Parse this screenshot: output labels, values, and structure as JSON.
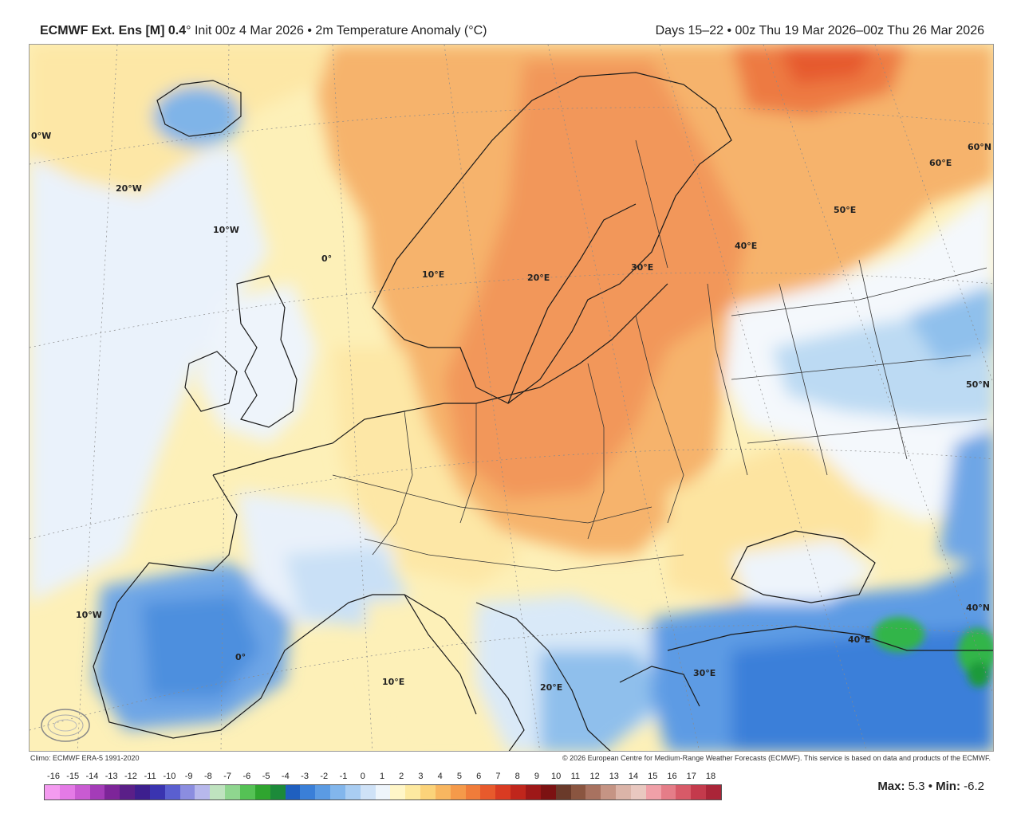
{
  "header": {
    "model": "ECMWF Ext. Ens [M] 0.4",
    "init": "° Init 00z 4 Mar 2026 • 2m Temperature Anomaly (°C)",
    "period": "Days 15–22 • 00z Thu 19 Mar 2026–00z Thu 26 Mar 2026"
  },
  "map_labels": [
    {
      "key": "lon0w_top",
      "text": "0°W"
    },
    {
      "key": "lon20w",
      "text": "20°W"
    },
    {
      "key": "lon10w_n",
      "text": "10°W"
    },
    {
      "key": "lon0",
      "text": "0°"
    },
    {
      "key": "lon10e_n",
      "text": "10°E"
    },
    {
      "key": "lon20e_n",
      "text": "20°E"
    },
    {
      "key": "lon30e_n",
      "text": "30°E"
    },
    {
      "key": "lon40e_n",
      "text": "40°E"
    },
    {
      "key": "lon50e",
      "text": "50°E"
    },
    {
      "key": "lon60e",
      "text": "60°E"
    },
    {
      "key": "lat60n",
      "text": "60°N"
    },
    {
      "key": "lat50n",
      "text": "50°N"
    },
    {
      "key": "lat40n",
      "text": "40°N"
    },
    {
      "key": "lon10w_s",
      "text": "10°W"
    },
    {
      "key": "lon0_s",
      "text": "0°"
    },
    {
      "key": "lon10e_s",
      "text": "10°E"
    },
    {
      "key": "lon20e_s",
      "text": "20°E"
    },
    {
      "key": "lon30e_s",
      "text": "30°E"
    },
    {
      "key": "lon40e_s",
      "text": "40°E"
    }
  ],
  "credits": {
    "climo": "Climo: ECMWF ERA-5 1991-2020",
    "copyright": "© 2026 European Centre for Medium-Range Weather Forecasts (ECMWF). This service is based on data and products of the ECMWF."
  },
  "colorbar": {
    "ticks": [
      "-16",
      "-15",
      "-14",
      "-13",
      "-12",
      "-11",
      "-10",
      "-9",
      "-8",
      "-7",
      "-6",
      "-5",
      "-4",
      "-3",
      "-2",
      "-1",
      "0",
      "1",
      "2",
      "3",
      "4",
      "5",
      "6",
      "7",
      "8",
      "9",
      "10",
      "11",
      "12",
      "13",
      "14",
      "15",
      "16",
      "17",
      "18"
    ],
    "colors": [
      "#f49bf0",
      "#e47ae6",
      "#c95bd2",
      "#a43cb8",
      "#7d2599",
      "#5a1f88",
      "#3d1f8e",
      "#3a34b0",
      "#5a5fd0",
      "#8b8de0",
      "#b7b8ec",
      "#bfe3bf",
      "#8fd68f",
      "#55c255",
      "#2fa52f",
      "#1c8a3a",
      "#1f5fbf",
      "#3a7fd8",
      "#5b9be3",
      "#82b6ec",
      "#a9cdf2",
      "#cfe2f7",
      "#eef5fb",
      "#fff6c8",
      "#fde9a0",
      "#fbd37a",
      "#f8b660",
      "#f59a4a",
      "#f07c3a",
      "#e85a2c",
      "#d93b22",
      "#c0261c",
      "#9e1818",
      "#7c1212",
      "#6a3a2a",
      "#8a5540",
      "#a87260",
      "#c59484",
      "#dbb4a8",
      "#e9c8c0",
      "#f0a0a8",
      "#e57d88",
      "#d85a68",
      "#c43a4c",
      "#aa2538"
    ]
  },
  "stats": {
    "max_label": "Max:",
    "max_value": "5.3",
    "sep": "•",
    "min_label": "Min:",
    "min_value": "-6.2"
  },
  "logo_text": "WEATHERBELL"
}
